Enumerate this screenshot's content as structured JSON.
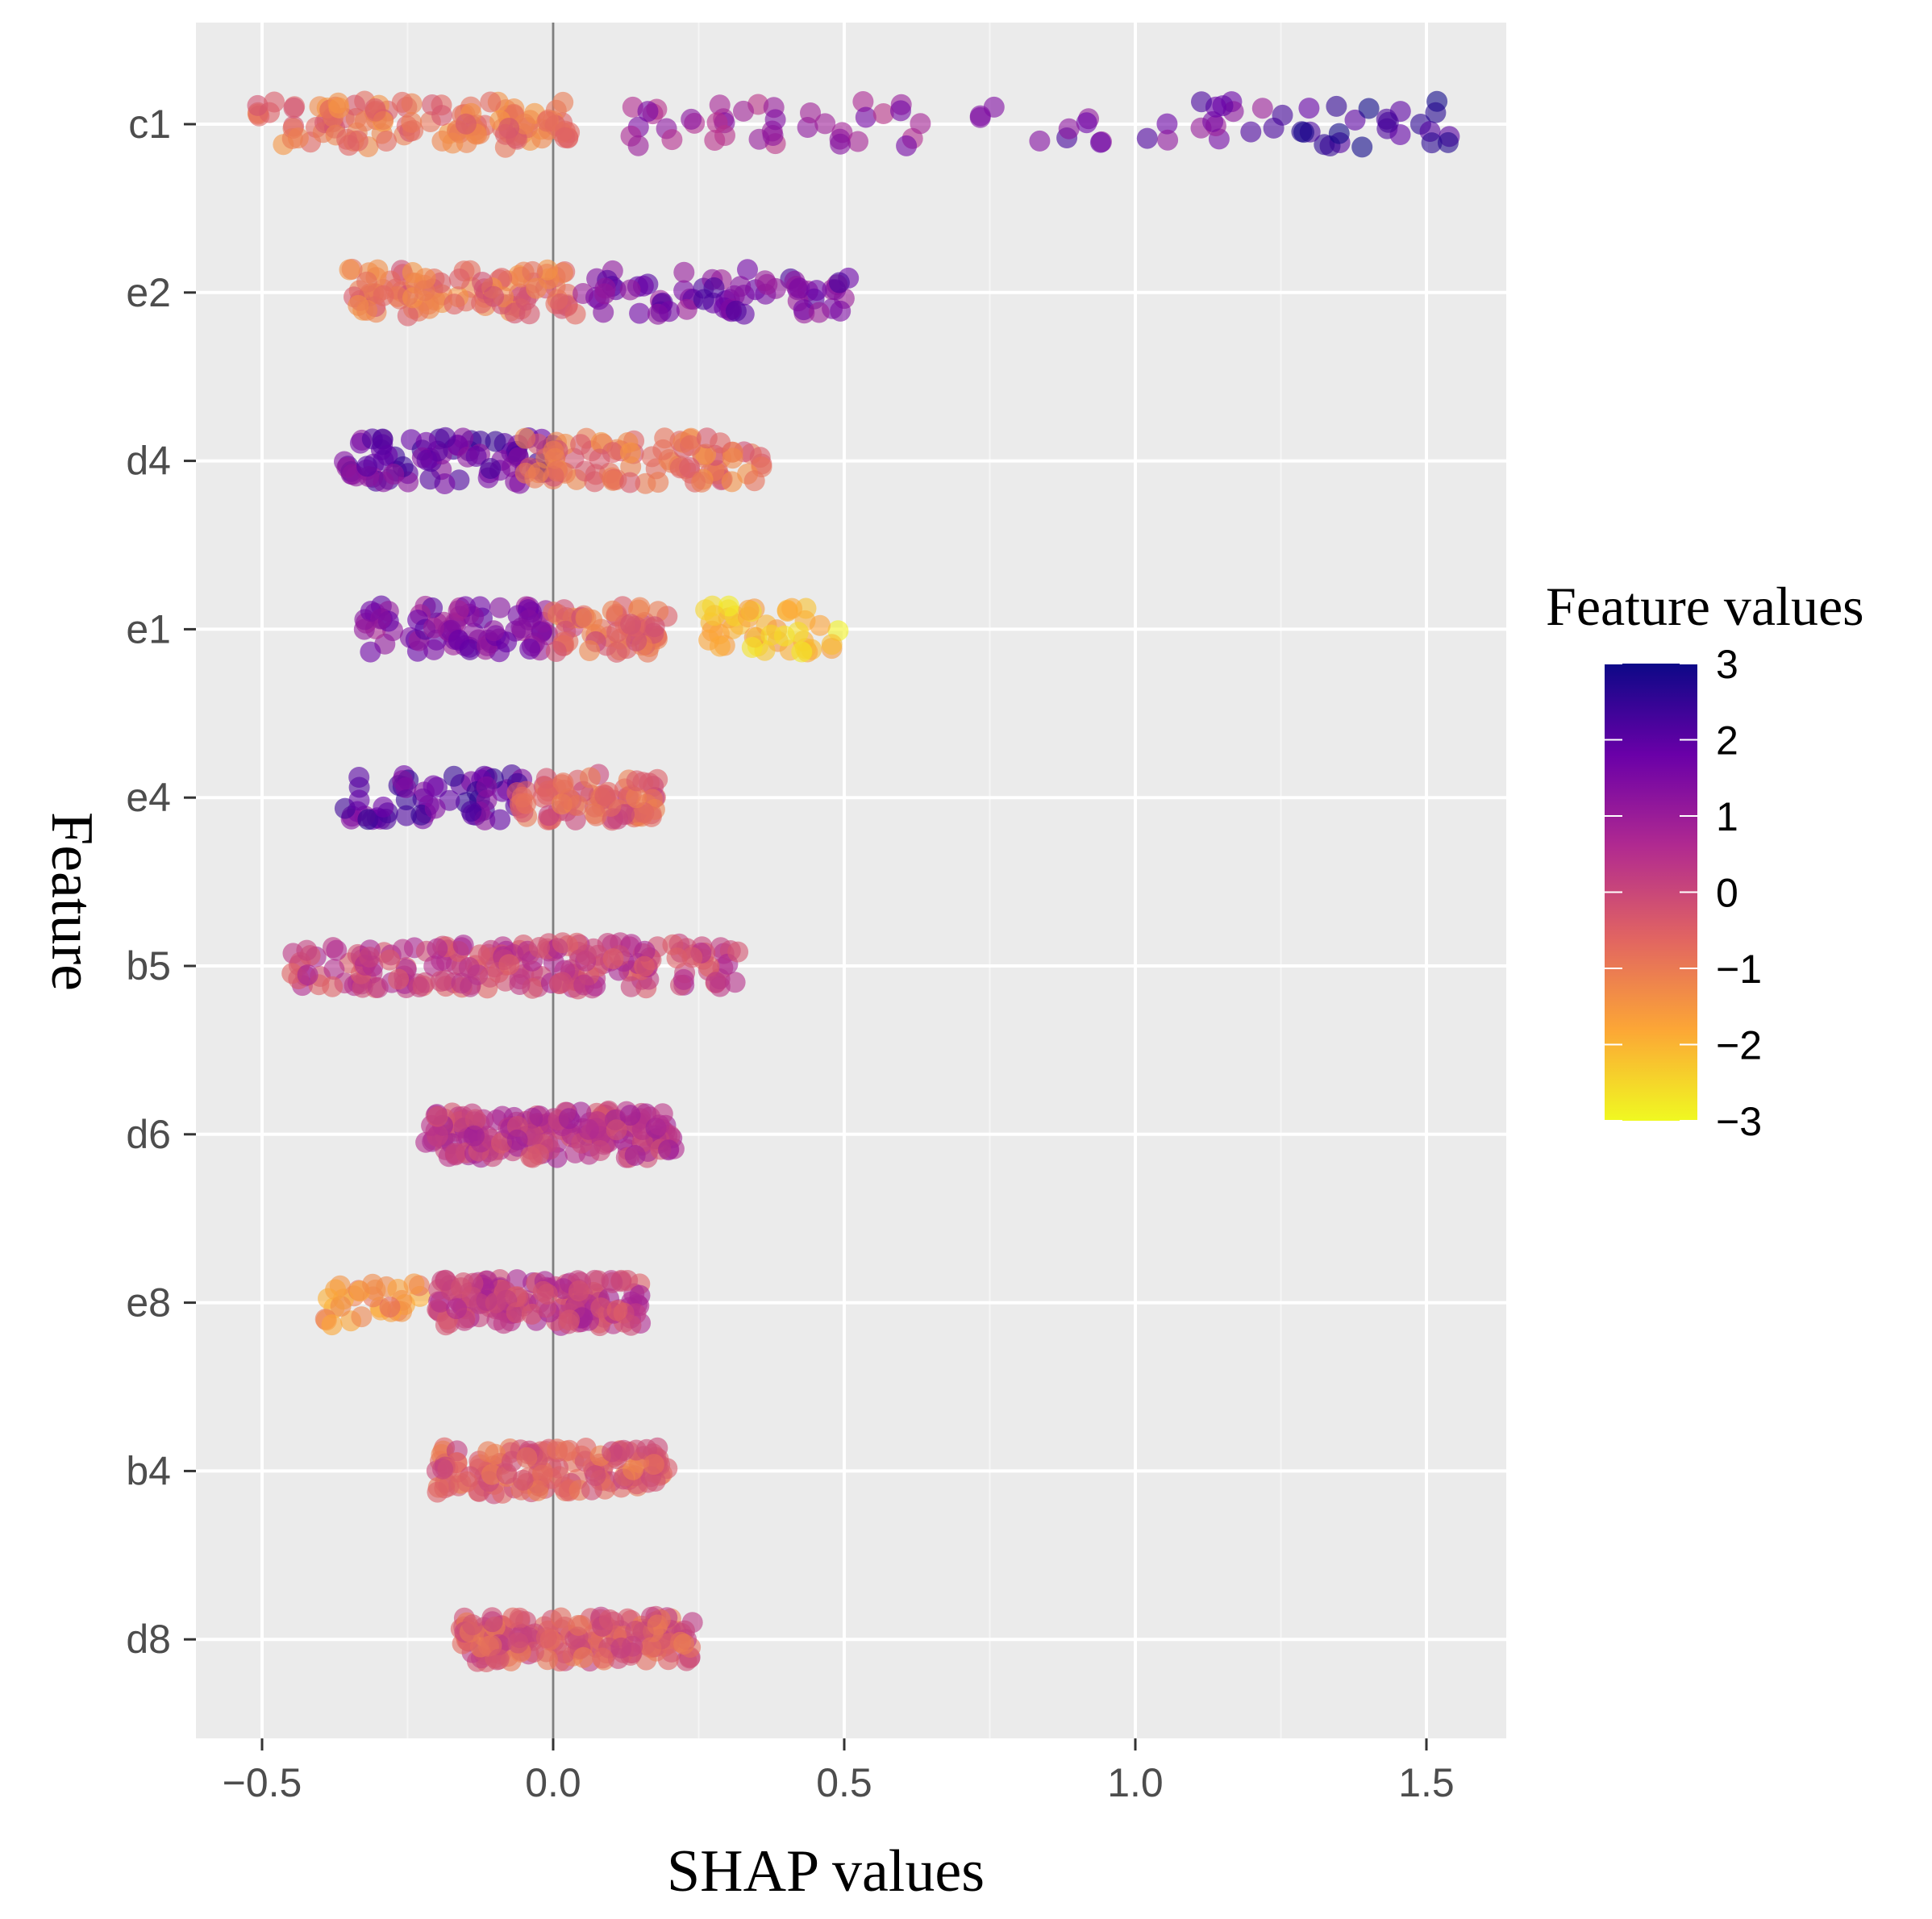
{
  "chart_data": {
    "type": "scatter",
    "xlabel": "SHAP values",
    "ylabel": "Feature",
    "xlim": [
      -0.62,
      1.63
    ],
    "x_ticks": [
      -0.5,
      0.0,
      0.5,
      1.0,
      1.5
    ],
    "x_tick_labels": [
      "−0.5",
      "0.0",
      "0.5",
      "1.0",
      "1.5"
    ],
    "features": [
      "c1",
      "e2",
      "d4",
      "e1",
      "e4",
      "b5",
      "d6",
      "e8",
      "b4",
      "d8"
    ],
    "reference_line_x": 0,
    "grid": true,
    "legend": {
      "title": "Feature values",
      "position": "right",
      "range": [
        -3,
        3
      ],
      "tick_values": [
        3,
        2,
        1,
        0,
        -1,
        -2,
        -3
      ],
      "tick_labels": [
        "3",
        "2",
        "1",
        "0",
        "−1",
        "−2",
        "−3"
      ],
      "colors": [
        "#0d0887",
        "#6a00a8",
        "#b12a90",
        "#e16462",
        "#fca636",
        "#f0f921"
      ]
    },
    "series": [
      {
        "feature": "c1",
        "clusters": [
          {
            "x_min": -0.51,
            "x_max": 0.03,
            "value": -0.9,
            "n": 120
          },
          {
            "x_min": 0.13,
            "x_max": 0.65,
            "value": 1.0,
            "n": 40
          },
          {
            "x_min": 0.72,
            "x_max": 1.25,
            "value": 1.7,
            "n": 25
          },
          {
            "x_min": 1.25,
            "x_max": 1.54,
            "value": 2.3,
            "n": 25
          }
        ]
      },
      {
        "feature": "e2",
        "clusters": [
          {
            "x_min": -0.35,
            "x_max": 0.05,
            "value": -0.8,
            "n": 100
          },
          {
            "x_min": 0.05,
            "x_max": 0.52,
            "value": 1.6,
            "n": 70
          }
        ]
      },
      {
        "feature": "d4",
        "clusters": [
          {
            "x_min": -0.36,
            "x_max": 0.0,
            "value": 1.8,
            "n": 80
          },
          {
            "x_min": -0.05,
            "x_max": 0.36,
            "value": -0.8,
            "n": 90
          }
        ]
      },
      {
        "feature": "e1",
        "clusters": [
          {
            "x_min": -0.33,
            "x_max": 0.0,
            "value": 1.4,
            "n": 80
          },
          {
            "x_min": 0.0,
            "x_max": 0.2,
            "value": -0.6,
            "n": 60
          },
          {
            "x_min": 0.26,
            "x_max": 0.49,
            "value": -2.2,
            "n": 45
          }
        ]
      },
      {
        "feature": "e4",
        "clusters": [
          {
            "x_min": -0.36,
            "x_max": -0.05,
            "value": 1.9,
            "n": 60
          },
          {
            "x_min": -0.08,
            "x_max": 0.18,
            "value": -0.5,
            "n": 80
          }
        ]
      },
      {
        "feature": "b5",
        "clusters": [
          {
            "x_min": -0.45,
            "x_max": 0.32,
            "value": 0.1,
            "n": 200
          }
        ]
      },
      {
        "feature": "d6",
        "clusters": [
          {
            "x_min": -0.22,
            "x_max": 0.21,
            "value": 0.3,
            "n": 180
          }
        ]
      },
      {
        "feature": "e8",
        "clusters": [
          {
            "x_min": -0.4,
            "x_max": -0.22,
            "value": -1.3,
            "n": 30
          },
          {
            "x_min": -0.2,
            "x_max": 0.15,
            "value": 0.2,
            "n": 150
          }
        ]
      },
      {
        "feature": "b4",
        "clusters": [
          {
            "x_min": -0.2,
            "x_max": 0.2,
            "value": -0.5,
            "n": 140
          }
        ]
      },
      {
        "feature": "d8",
        "clusters": [
          {
            "x_min": -0.16,
            "x_max": 0.24,
            "value": -0.4,
            "n": 170
          }
        ]
      }
    ]
  }
}
